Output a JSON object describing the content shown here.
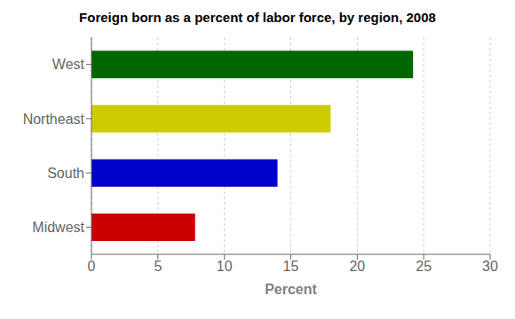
{
  "chart_data": {
    "type": "bar",
    "orientation": "horizontal",
    "title": "Foreign born as a percent of labor force, by region, 2008",
    "categories": [
      "Midwest",
      "South",
      "Northeast",
      "West"
    ],
    "values": [
      7.8,
      14.0,
      18.0,
      24.2
    ],
    "colors": [
      "#cc0000",
      "#0000cc",
      "#cccc00",
      "#006600"
    ],
    "xlabel": "Percent",
    "xlim": [
      0,
      30
    ],
    "xticks": [
      0,
      5,
      10,
      15,
      20,
      25,
      30
    ],
    "grid": true
  }
}
